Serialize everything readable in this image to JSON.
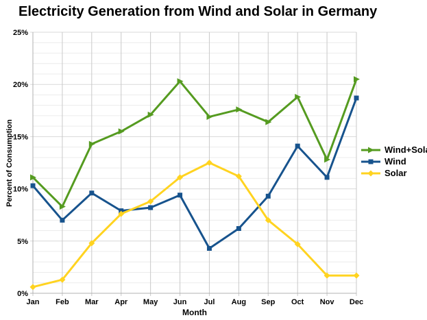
{
  "title": "Electricity Generation from Wind and Solar in Germany",
  "chart_data": {
    "type": "line",
    "title": "Electricity Generation from Wind and Solar in Germany",
    "xlabel": "Month",
    "ylabel": "Percent of Consumption",
    "categories": [
      "Jan",
      "Feb",
      "Mar",
      "Apr",
      "May",
      "Jun",
      "Jul",
      "Aug",
      "Sep",
      "Oct",
      "Nov",
      "Dec"
    ],
    "ylim": [
      0,
      25
    ],
    "ytick_interval": 5,
    "minor_ytick_interval": 1,
    "ytick_labels": [
      "0%",
      "5%",
      "10%",
      "15%",
      "20%",
      "25%"
    ],
    "grid": true,
    "legend_position": "right",
    "series": [
      {
        "name": "Wind+Solar",
        "color": "#559B20",
        "marker": "arrow-right",
        "values": [
          11.1,
          8.3,
          14.3,
          15.5,
          17.1,
          20.3,
          16.9,
          17.6,
          16.4,
          18.8,
          12.8,
          20.5
        ]
      },
      {
        "name": "Wind",
        "color": "#17538D",
        "marker": "square",
        "values": [
          10.3,
          7.0,
          9.6,
          7.9,
          8.2,
          9.4,
          4.3,
          6.2,
          9.3,
          14.1,
          11.1,
          18.7
        ]
      },
      {
        "name": "Solar",
        "color": "#FFD320",
        "marker": "diamond",
        "values": [
          0.6,
          1.3,
          4.8,
          7.6,
          8.8,
          11.1,
          12.5,
          11.2,
          7.0,
          4.7,
          1.7,
          1.7
        ]
      }
    ]
  },
  "colors": {
    "background": "#ffffff",
    "text": "#000000",
    "grid_minor": "#ececec",
    "grid_major": "#d8d8d8",
    "grid_vertical": "#c9c9c9",
    "axis": "#b0b0b0"
  }
}
